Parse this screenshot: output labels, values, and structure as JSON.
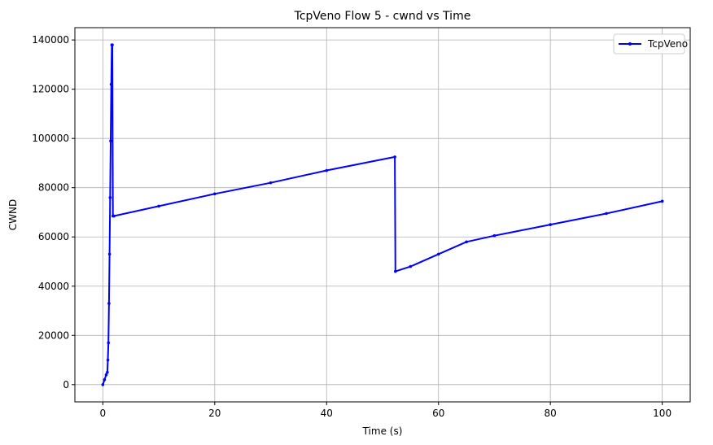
{
  "chart_data": {
    "type": "line",
    "title": "TcpVeno Flow 5 - cwnd vs Time",
    "xlabel": "Time (s)",
    "ylabel": "CWND",
    "xlim": [
      -5,
      105
    ],
    "ylim": [
      -7000,
      145000
    ],
    "xticks": [
      0,
      20,
      40,
      60,
      80,
      100
    ],
    "yticks": [
      0,
      20000,
      40000,
      60000,
      80000,
      100000,
      120000,
      140000
    ],
    "grid": true,
    "legend_position": "top-right",
    "series": [
      {
        "name": "TcpVeno",
        "color": "#0000ff",
        "marker": "dot",
        "x": [
          0,
          0.3,
          0.6,
          0.8,
          0.9,
          1.0,
          1.1,
          1.2,
          1.3,
          1.4,
          1.5,
          1.6,
          1.7,
          1.8,
          2.0,
          10,
          20,
          30,
          40,
          52.2,
          52.3,
          55,
          60,
          65,
          70,
          80,
          90,
          100
        ],
        "y": [
          0,
          2000,
          4000,
          5000,
          10000,
          17000,
          33000,
          53000,
          76000,
          99000,
          122000,
          138000,
          138000,
          68500,
          68500,
          72500,
          77500,
          82000,
          87000,
          92500,
          46000,
          48000,
          53000,
          58000,
          60500,
          65000,
          69500,
          74500
        ]
      }
    ]
  }
}
